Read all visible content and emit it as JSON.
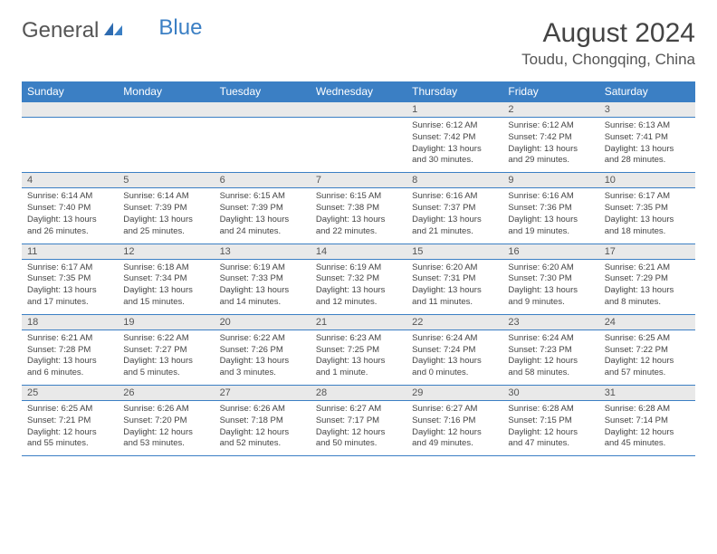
{
  "brand": {
    "part1": "General",
    "part2": "Blue"
  },
  "title": "August 2024",
  "location": "Toudu, Chongqing, China",
  "colors": {
    "accent": "#3b7fc4",
    "header_text": "#ffffff",
    "daynum_bg": "#e9e9e9",
    "text": "#444444",
    "background": "#ffffff"
  },
  "day_headers": [
    "Sunday",
    "Monday",
    "Tuesday",
    "Wednesday",
    "Thursday",
    "Friday",
    "Saturday"
  ],
  "weeks": [
    {
      "nums": [
        "",
        "",
        "",
        "",
        "1",
        "2",
        "3"
      ],
      "cells": [
        {},
        {},
        {},
        {},
        {
          "sunrise": "Sunrise: 6:12 AM",
          "sunset": "Sunset: 7:42 PM",
          "daylight": "Daylight: 13 hours and 30 minutes."
        },
        {
          "sunrise": "Sunrise: 6:12 AM",
          "sunset": "Sunset: 7:42 PM",
          "daylight": "Daylight: 13 hours and 29 minutes."
        },
        {
          "sunrise": "Sunrise: 6:13 AM",
          "sunset": "Sunset: 7:41 PM",
          "daylight": "Daylight: 13 hours and 28 minutes."
        }
      ]
    },
    {
      "nums": [
        "4",
        "5",
        "6",
        "7",
        "8",
        "9",
        "10"
      ],
      "cells": [
        {
          "sunrise": "Sunrise: 6:14 AM",
          "sunset": "Sunset: 7:40 PM",
          "daylight": "Daylight: 13 hours and 26 minutes."
        },
        {
          "sunrise": "Sunrise: 6:14 AM",
          "sunset": "Sunset: 7:39 PM",
          "daylight": "Daylight: 13 hours and 25 minutes."
        },
        {
          "sunrise": "Sunrise: 6:15 AM",
          "sunset": "Sunset: 7:39 PM",
          "daylight": "Daylight: 13 hours and 24 minutes."
        },
        {
          "sunrise": "Sunrise: 6:15 AM",
          "sunset": "Sunset: 7:38 PM",
          "daylight": "Daylight: 13 hours and 22 minutes."
        },
        {
          "sunrise": "Sunrise: 6:16 AM",
          "sunset": "Sunset: 7:37 PM",
          "daylight": "Daylight: 13 hours and 21 minutes."
        },
        {
          "sunrise": "Sunrise: 6:16 AM",
          "sunset": "Sunset: 7:36 PM",
          "daylight": "Daylight: 13 hours and 19 minutes."
        },
        {
          "sunrise": "Sunrise: 6:17 AM",
          "sunset": "Sunset: 7:35 PM",
          "daylight": "Daylight: 13 hours and 18 minutes."
        }
      ]
    },
    {
      "nums": [
        "11",
        "12",
        "13",
        "14",
        "15",
        "16",
        "17"
      ],
      "cells": [
        {
          "sunrise": "Sunrise: 6:17 AM",
          "sunset": "Sunset: 7:35 PM",
          "daylight": "Daylight: 13 hours and 17 minutes."
        },
        {
          "sunrise": "Sunrise: 6:18 AM",
          "sunset": "Sunset: 7:34 PM",
          "daylight": "Daylight: 13 hours and 15 minutes."
        },
        {
          "sunrise": "Sunrise: 6:19 AM",
          "sunset": "Sunset: 7:33 PM",
          "daylight": "Daylight: 13 hours and 14 minutes."
        },
        {
          "sunrise": "Sunrise: 6:19 AM",
          "sunset": "Sunset: 7:32 PM",
          "daylight": "Daylight: 13 hours and 12 minutes."
        },
        {
          "sunrise": "Sunrise: 6:20 AM",
          "sunset": "Sunset: 7:31 PM",
          "daylight": "Daylight: 13 hours and 11 minutes."
        },
        {
          "sunrise": "Sunrise: 6:20 AM",
          "sunset": "Sunset: 7:30 PM",
          "daylight": "Daylight: 13 hours and 9 minutes."
        },
        {
          "sunrise": "Sunrise: 6:21 AM",
          "sunset": "Sunset: 7:29 PM",
          "daylight": "Daylight: 13 hours and 8 minutes."
        }
      ]
    },
    {
      "nums": [
        "18",
        "19",
        "20",
        "21",
        "22",
        "23",
        "24"
      ],
      "cells": [
        {
          "sunrise": "Sunrise: 6:21 AM",
          "sunset": "Sunset: 7:28 PM",
          "daylight": "Daylight: 13 hours and 6 minutes."
        },
        {
          "sunrise": "Sunrise: 6:22 AM",
          "sunset": "Sunset: 7:27 PM",
          "daylight": "Daylight: 13 hours and 5 minutes."
        },
        {
          "sunrise": "Sunrise: 6:22 AM",
          "sunset": "Sunset: 7:26 PM",
          "daylight": "Daylight: 13 hours and 3 minutes."
        },
        {
          "sunrise": "Sunrise: 6:23 AM",
          "sunset": "Sunset: 7:25 PM",
          "daylight": "Daylight: 13 hours and 1 minute."
        },
        {
          "sunrise": "Sunrise: 6:24 AM",
          "sunset": "Sunset: 7:24 PM",
          "daylight": "Daylight: 13 hours and 0 minutes."
        },
        {
          "sunrise": "Sunrise: 6:24 AM",
          "sunset": "Sunset: 7:23 PM",
          "daylight": "Daylight: 12 hours and 58 minutes."
        },
        {
          "sunrise": "Sunrise: 6:25 AM",
          "sunset": "Sunset: 7:22 PM",
          "daylight": "Daylight: 12 hours and 57 minutes."
        }
      ]
    },
    {
      "nums": [
        "25",
        "26",
        "27",
        "28",
        "29",
        "30",
        "31"
      ],
      "cells": [
        {
          "sunrise": "Sunrise: 6:25 AM",
          "sunset": "Sunset: 7:21 PM",
          "daylight": "Daylight: 12 hours and 55 minutes."
        },
        {
          "sunrise": "Sunrise: 6:26 AM",
          "sunset": "Sunset: 7:20 PM",
          "daylight": "Daylight: 12 hours and 53 minutes."
        },
        {
          "sunrise": "Sunrise: 6:26 AM",
          "sunset": "Sunset: 7:18 PM",
          "daylight": "Daylight: 12 hours and 52 minutes."
        },
        {
          "sunrise": "Sunrise: 6:27 AM",
          "sunset": "Sunset: 7:17 PM",
          "daylight": "Daylight: 12 hours and 50 minutes."
        },
        {
          "sunrise": "Sunrise: 6:27 AM",
          "sunset": "Sunset: 7:16 PM",
          "daylight": "Daylight: 12 hours and 49 minutes."
        },
        {
          "sunrise": "Sunrise: 6:28 AM",
          "sunset": "Sunset: 7:15 PM",
          "daylight": "Daylight: 12 hours and 47 minutes."
        },
        {
          "sunrise": "Sunrise: 6:28 AM",
          "sunset": "Sunset: 7:14 PM",
          "daylight": "Daylight: 12 hours and 45 minutes."
        }
      ]
    }
  ]
}
